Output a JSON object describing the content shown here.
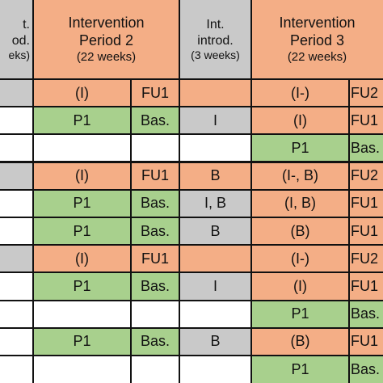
{
  "colors": {
    "orange": "#F4AE86",
    "green": "#A8D08D",
    "gray": "#C9C9C9",
    "white": "#FFFFFF"
  },
  "headers": [
    {
      "id": "h0",
      "col": 0,
      "span": 1,
      "color": "gray",
      "lines": [
        "t.",
        "od.",
        "eks)"
      ],
      "clip_left": true
    },
    {
      "id": "h1",
      "col": 1,
      "span": 2,
      "color": "orange",
      "lines": [
        "Intervention",
        "Period 2",
        "(22 weeks)"
      ]
    },
    {
      "id": "h2",
      "col": 3,
      "span": 1,
      "color": "gray",
      "lines": [
        "Int.",
        "introd.",
        "(3 weeks)"
      ]
    },
    {
      "id": "h3",
      "col": 4,
      "span": 2,
      "color": "orange",
      "lines": [
        "Intervention",
        "Period 3",
        "(22 weeks)"
      ]
    }
  ],
  "rows": [
    [
      {
        "t": "",
        "c": "gray"
      },
      {
        "t": "(I)",
        "c": "orange"
      },
      {
        "t": "FU1",
        "c": "orange"
      },
      {
        "t": "",
        "c": "orange"
      },
      {
        "t": "(I-)",
        "c": "orange"
      },
      {
        "t": "FU2",
        "c": "orange"
      }
    ],
    [
      {
        "t": "",
        "c": "white"
      },
      {
        "t": "P1",
        "c": "green"
      },
      {
        "t": "Bas.",
        "c": "green"
      },
      {
        "t": "I",
        "c": "gray"
      },
      {
        "t": "(I)",
        "c": "orange"
      },
      {
        "t": "FU1",
        "c": "orange"
      }
    ],
    [
      {
        "t": "",
        "c": "white"
      },
      {
        "t": "",
        "c": "white"
      },
      {
        "t": "",
        "c": "white"
      },
      {
        "t": "",
        "c": "white"
      },
      {
        "t": "P1",
        "c": "green"
      },
      {
        "t": "Bas.",
        "c": "green"
      }
    ],
    [
      {
        "t": "",
        "c": "gray"
      },
      {
        "t": "(I)",
        "c": "orange"
      },
      {
        "t": "FU1",
        "c": "orange"
      },
      {
        "t": "B",
        "c": "orange"
      },
      {
        "t": "(I-, B)",
        "c": "orange"
      },
      {
        "t": "FU2",
        "c": "orange"
      }
    ],
    [
      {
        "t": "",
        "c": "white"
      },
      {
        "t": "P1",
        "c": "green"
      },
      {
        "t": "Bas.",
        "c": "green"
      },
      {
        "t": "I, B",
        "c": "gray"
      },
      {
        "t": "(I, B)",
        "c": "orange"
      },
      {
        "t": "FU1",
        "c": "orange"
      }
    ],
    [
      {
        "t": "",
        "c": "white"
      },
      {
        "t": "P1",
        "c": "green"
      },
      {
        "t": "Bas.",
        "c": "green"
      },
      {
        "t": "B",
        "c": "gray"
      },
      {
        "t": "(B)",
        "c": "orange"
      },
      {
        "t": "FU1",
        "c": "orange"
      }
    ],
    [
      {
        "t": "",
        "c": "gray"
      },
      {
        "t": "(I)",
        "c": "orange"
      },
      {
        "t": "FU1",
        "c": "orange"
      },
      {
        "t": "",
        "c": "orange"
      },
      {
        "t": "(I-)",
        "c": "orange"
      },
      {
        "t": "FU2",
        "c": "orange"
      }
    ],
    [
      {
        "t": "",
        "c": "white"
      },
      {
        "t": "P1",
        "c": "green"
      },
      {
        "t": "Bas.",
        "c": "green"
      },
      {
        "t": "I",
        "c": "gray"
      },
      {
        "t": "(I)",
        "c": "orange"
      },
      {
        "t": "FU1",
        "c": "orange"
      }
    ],
    [
      {
        "t": "",
        "c": "white"
      },
      {
        "t": "",
        "c": "white"
      },
      {
        "t": "",
        "c": "white"
      },
      {
        "t": "",
        "c": "white"
      },
      {
        "t": "P1",
        "c": "green"
      },
      {
        "t": "Bas.",
        "c": "green"
      }
    ],
    [
      {
        "t": "",
        "c": "white"
      },
      {
        "t": "P1",
        "c": "green"
      },
      {
        "t": "Bas.",
        "c": "green"
      },
      {
        "t": "B",
        "c": "gray"
      },
      {
        "t": "(B)",
        "c": "orange"
      },
      {
        "t": "FU1",
        "c": "orange"
      }
    ],
    [
      {
        "t": "",
        "c": "white"
      },
      {
        "t": "",
        "c": "white"
      },
      {
        "t": "",
        "c": "white"
      },
      {
        "t": "",
        "c": "white"
      },
      {
        "t": "P1",
        "c": "green"
      },
      {
        "t": "Bas.",
        "c": "green"
      }
    ]
  ]
}
